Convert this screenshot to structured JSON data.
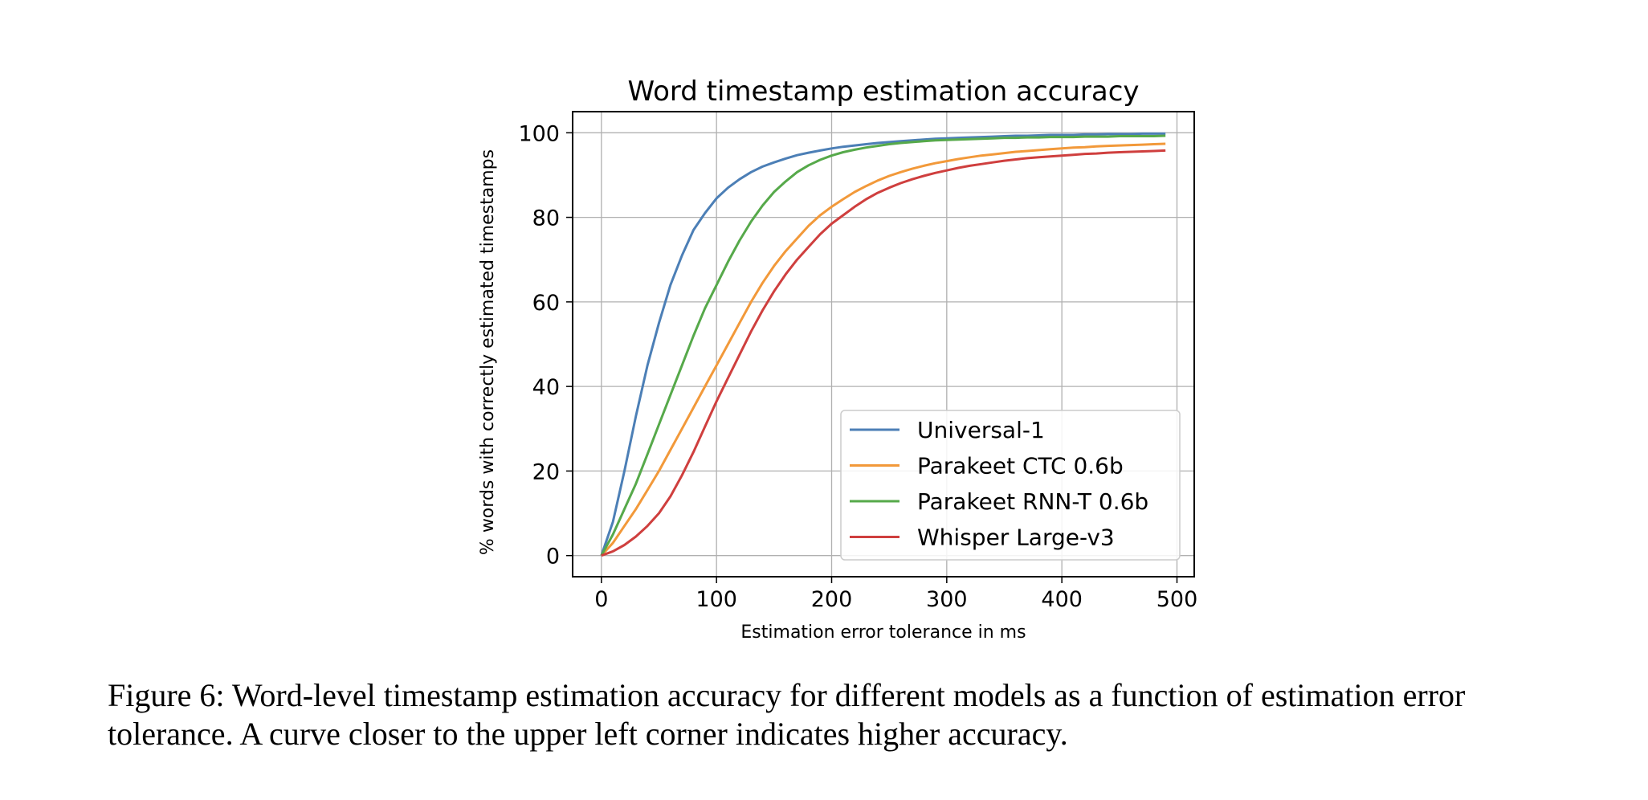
{
  "chart_data": {
    "type": "line",
    "title": "Word timestamp estimation accuracy",
    "xlabel": "Estimation error tolerance in ms",
    "ylabel": "% words with correctly estimated timestamps",
    "xlim": [
      -25,
      515
    ],
    "ylim": [
      -5,
      105
    ],
    "xticks": [
      0,
      100,
      200,
      300,
      400,
      500
    ],
    "yticks": [
      0,
      20,
      40,
      60,
      80,
      100
    ],
    "grid": true,
    "legend": "lower right",
    "x": [
      0,
      10,
      20,
      30,
      40,
      50,
      60,
      70,
      80,
      90,
      100,
      110,
      120,
      130,
      140,
      150,
      160,
      170,
      180,
      190,
      200,
      210,
      220,
      230,
      240,
      250,
      260,
      270,
      280,
      290,
      300,
      310,
      320,
      330,
      340,
      350,
      360,
      370,
      380,
      390,
      400,
      410,
      420,
      430,
      440,
      450,
      460,
      470,
      480,
      490
    ],
    "series": [
      {
        "name": "Universal-1",
        "color": "#4c7fb6",
        "values": [
          0,
          8,
          20,
          33,
          45,
          55,
          64,
          71,
          77,
          81,
          84.5,
          87,
          89,
          90.7,
          92,
          93,
          93.9,
          94.7,
          95.3,
          95.8,
          96.3,
          96.7,
          97,
          97.3,
          97.6,
          97.8,
          98,
          98.2,
          98.4,
          98.6,
          98.7,
          98.8,
          98.9,
          99,
          99.1,
          99.2,
          99.3,
          99.3,
          99.4,
          99.5,
          99.5,
          99.5,
          99.6,
          99.6,
          99.7,
          99.7,
          99.7,
          99.8,
          99.8,
          99.8
        ]
      },
      {
        "name": "Parakeet CTC 0.6b",
        "color": "#f2993a",
        "values": [
          0,
          3,
          7,
          11,
          15.5,
          20,
          25,
          30,
          35,
          40,
          45,
          50,
          55,
          60,
          64.5,
          68.5,
          72,
          75,
          78,
          80.5,
          82.5,
          84.3,
          86,
          87.4,
          88.7,
          89.8,
          90.7,
          91.5,
          92.2,
          92.8,
          93.3,
          93.8,
          94.2,
          94.6,
          94.9,
          95.2,
          95.5,
          95.7,
          95.9,
          96.1,
          96.3,
          96.5,
          96.6,
          96.8,
          96.9,
          97,
          97.1,
          97.2,
          97.3,
          97.4
        ]
      },
      {
        "name": "Parakeet RNN-T 0.6b",
        "color": "#56a94a",
        "values": [
          0,
          5,
          11,
          17,
          24,
          31,
          38,
          45,
          52,
          58.5,
          64,
          69.5,
          74.5,
          79,
          82.8,
          86,
          88.5,
          90.7,
          92.3,
          93.6,
          94.6,
          95.4,
          96,
          96.5,
          96.9,
          97.3,
          97.6,
          97.8,
          98,
          98.2,
          98.3,
          98.4,
          98.5,
          98.6,
          98.7,
          98.8,
          98.8,
          98.9,
          98.9,
          99,
          99,
          99,
          99.1,
          99.1,
          99.1,
          99.2,
          99.2,
          99.2,
          99.2,
          99.3
        ]
      },
      {
        "name": "Whisper Large-v3",
        "color": "#cf3f3e",
        "values": [
          0,
          1,
          2.5,
          4.5,
          7,
          10,
          14,
          19,
          24.5,
          30.5,
          36.5,
          42,
          47.5,
          53,
          58,
          62.5,
          66.5,
          70,
          73,
          76,
          78.5,
          80.5,
          82.5,
          84.3,
          85.8,
          87,
          88.1,
          89,
          89.8,
          90.5,
          91.1,
          91.7,
          92.2,
          92.6,
          93,
          93.4,
          93.7,
          94,
          94.2,
          94.4,
          94.6,
          94.8,
          95,
          95.1,
          95.3,
          95.4,
          95.5,
          95.6,
          95.7,
          95.8
        ]
      }
    ]
  },
  "caption": {
    "text": "Figure 6: Word-level timestamp estimation accuracy for different models as a function of estimation error tolerance. A curve closer to the upper left corner indicates higher accuracy."
  }
}
